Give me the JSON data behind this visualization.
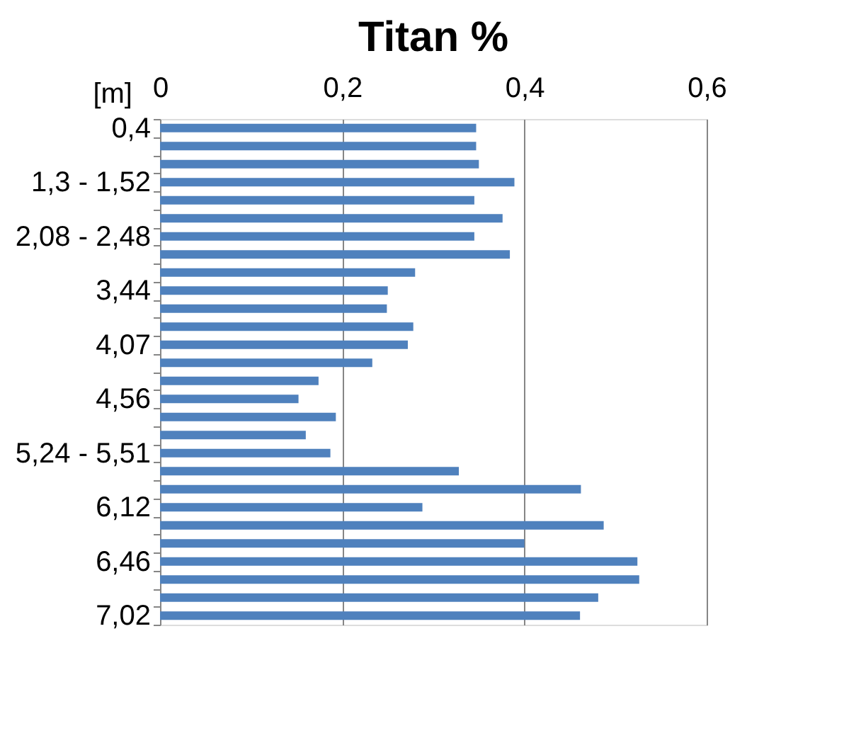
{
  "chart_data": {
    "type": "bar",
    "orientation": "horizontal",
    "title": "Titan %",
    "ylabel": "[m]",
    "categories": [
      "0,4",
      null,
      null,
      "1,3 - 1,52",
      null,
      null,
      "2,08 - 2,48",
      null,
      null,
      "3,44",
      null,
      null,
      "4,07",
      null,
      null,
      "4,56",
      null,
      null,
      "5,24 - 5,51",
      null,
      null,
      "6,12",
      null,
      null,
      "6,46",
      null,
      null,
      "7,02"
    ],
    "values": [
      0.347,
      0.347,
      0.35,
      0.389,
      0.345,
      0.376,
      0.345,
      0.384,
      0.28,
      0.25,
      0.249,
      0.278,
      0.272,
      0.233,
      0.174,
      0.152,
      0.193,
      0.16,
      0.187,
      0.328,
      0.462,
      0.288,
      0.487,
      0.4,
      0.524,
      0.526,
      0.481,
      0.461
    ],
    "color": "#4f81bd",
    "xlim": [
      0,
      0.6
    ],
    "xticks": [
      0,
      {
        "value": 0.2,
        "label": "0,2"
      },
      {
        "value": 0.4,
        "label": "0,4"
      },
      {
        "value": 0.6,
        "label": "0,6"
      }
    ],
    "grid": "x"
  }
}
